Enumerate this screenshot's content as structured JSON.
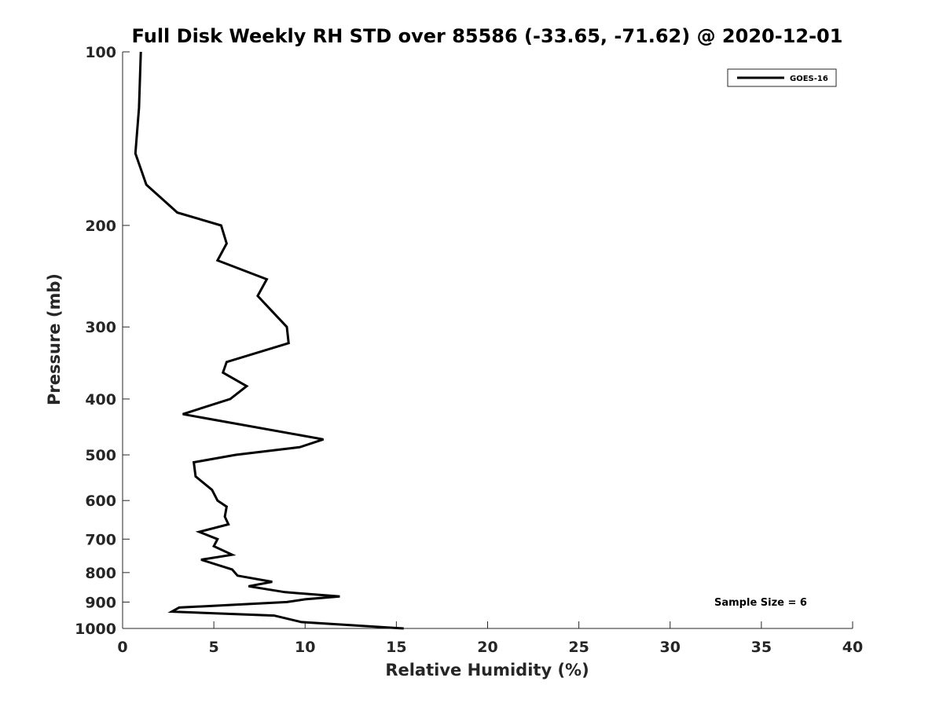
{
  "chart_data": {
    "type": "line",
    "title": "Full Disk Weekly RH STD over 85586 (-33.65, -71.62) @ 2020-12-01",
    "xlabel": "Relative Humidity (%)",
    "ylabel": "Pressure (mb)",
    "xlim": [
      0,
      40
    ],
    "ylim": [
      100,
      1000
    ],
    "y_scale": "log",
    "y_reversed": true,
    "x_ticks": [
      0,
      5,
      10,
      15,
      20,
      25,
      30,
      35,
      40
    ],
    "y_ticks": [
      100,
      200,
      300,
      400,
      500,
      600,
      700,
      800,
      900,
      1000
    ],
    "grid": false,
    "legend_position": "top-right",
    "annotation": "Sample Size = 6",
    "series": [
      {
        "name": "GOES-16",
        "color": "#000000",
        "points": [
          [
            1.0,
            100
          ],
          [
            0.9,
            125
          ],
          [
            0.7,
            150
          ],
          [
            1.3,
            170
          ],
          [
            3.0,
            190
          ],
          [
            5.4,
            200
          ],
          [
            5.7,
            215
          ],
          [
            5.2,
            230
          ],
          [
            7.9,
            248
          ],
          [
            7.4,
            265
          ],
          [
            9.0,
            300
          ],
          [
            9.1,
            320
          ],
          [
            5.7,
            345
          ],
          [
            5.5,
            360
          ],
          [
            6.8,
            380
          ],
          [
            5.9,
            400
          ],
          [
            3.3,
            425
          ],
          [
            11.0,
            470
          ],
          [
            9.7,
            485
          ],
          [
            6.2,
            500
          ],
          [
            3.9,
            515
          ],
          [
            4.0,
            545
          ],
          [
            4.9,
            575
          ],
          [
            5.2,
            600
          ],
          [
            5.7,
            615
          ],
          [
            5.6,
            640
          ],
          [
            5.8,
            660
          ],
          [
            4.2,
            680
          ],
          [
            5.2,
            700
          ],
          [
            5.0,
            720
          ],
          [
            6.0,
            745
          ],
          [
            4.3,
            760
          ],
          [
            6.0,
            790
          ],
          [
            6.3,
            810
          ],
          [
            8.2,
            830
          ],
          [
            6.9,
            845
          ],
          [
            8.9,
            865
          ],
          [
            11.9,
            880
          ],
          [
            10.0,
            890
          ],
          [
            9.0,
            900
          ],
          [
            3.1,
            920
          ],
          [
            2.7,
            935
          ],
          [
            8.3,
            950
          ],
          [
            9.8,
            975
          ],
          [
            15.4,
            1000
          ]
        ]
      }
    ]
  }
}
